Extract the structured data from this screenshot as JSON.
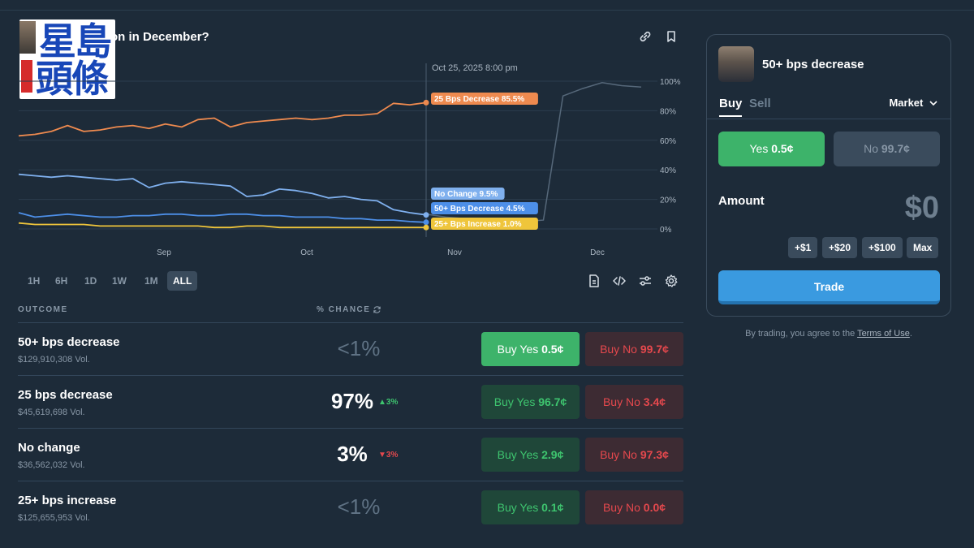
{
  "market": {
    "title": "on in December?"
  },
  "logo": {
    "line1": "星島",
    "line2": "頭條"
  },
  "chart_data": {
    "type": "line",
    "hover_label": "Oct 25, 2025 8:00 pm",
    "x_ticks": [
      "Sep",
      "Oct",
      "Nov",
      "Dec"
    ],
    "y_ticks": [
      "100%",
      "80%",
      "60%",
      "40%",
      "20%",
      "0%"
    ],
    "ylim": [
      0,
      100
    ],
    "grid": true,
    "series": [
      {
        "name": "25 Bps Decrease",
        "label": "25 Bps Decrease 85.5%",
        "color": "#ee8a4f",
        "values": [
          63,
          64,
          66,
          70,
          66,
          67,
          69,
          70,
          68,
          71,
          69,
          74,
          75,
          69,
          72,
          73,
          74,
          75,
          74,
          75,
          77,
          77,
          78,
          85,
          84,
          85.5
        ]
      },
      {
        "name": "No Change",
        "label": "No Change 9.5%",
        "color": "#7fb0ee",
        "values": [
          37,
          36,
          35,
          36,
          35,
          34,
          33,
          34,
          28,
          31,
          32,
          31,
          30,
          29,
          22,
          23,
          27,
          26,
          24,
          21,
          22,
          20,
          19,
          13,
          11,
          9.5
        ]
      },
      {
        "name": "50+ Bps Decrease",
        "label": "50+ Bps Decrease 4.5%",
        "color": "#4d8fe8",
        "values": [
          11,
          8,
          9,
          10,
          9,
          8,
          8,
          9,
          9,
          10,
          10,
          9,
          9,
          10,
          10,
          9,
          9,
          8,
          8,
          8,
          7,
          7,
          6,
          6,
          5,
          4.5
        ]
      },
      {
        "name": "25+ Bps Increase",
        "label": "25+ Bps Increase 1.0%",
        "color": "#efc53b",
        "values": [
          4,
          3,
          3,
          3,
          3,
          2,
          2,
          2,
          2,
          2,
          2,
          2,
          1,
          1,
          2,
          2,
          1,
          1,
          1,
          1,
          1,
          1,
          1,
          1,
          1,
          1.0
        ]
      }
    ],
    "future_series": {
      "values": [
        10,
        8,
        7,
        6,
        5,
        5,
        6,
        90,
        95,
        99,
        97,
        96
      ]
    }
  },
  "timeframes": [
    {
      "label": "1H",
      "active": false
    },
    {
      "label": "6H",
      "active": false
    },
    {
      "label": "1D",
      "active": false
    },
    {
      "label": "1W",
      "active": false
    },
    {
      "label": "1M",
      "active": false
    },
    {
      "label": "ALL",
      "active": true
    }
  ],
  "columns": {
    "outcome": "OUTCOME",
    "chance": "% CHANCE"
  },
  "outcomes": [
    {
      "name": "50+ bps decrease",
      "volume": "$129,910,308 Vol.",
      "chance": "<1%",
      "delta": "",
      "yes_label": "Buy Yes",
      "yes_price": "0.5¢",
      "no_label": "Buy No",
      "no_price": "99.7¢"
    },
    {
      "name": "25 bps decrease",
      "volume": "$45,619,698 Vol.",
      "chance": "97%",
      "delta": "▲3%",
      "yes_label": "Buy Yes",
      "yes_price": "96.7¢",
      "no_label": "Buy No",
      "no_price": "3.4¢"
    },
    {
      "name": "No change",
      "volume": "$36,562,032 Vol.",
      "chance": "3%",
      "delta": "▼3%",
      "yes_label": "Buy Yes",
      "yes_price": "2.9¢",
      "no_label": "Buy No",
      "no_price": "97.3¢"
    },
    {
      "name": "25+ bps increase",
      "volume": "$125,655,953 Vol.",
      "chance": "<1%",
      "delta": "",
      "yes_label": "Buy Yes",
      "yes_price": "0.1¢",
      "no_label": "Buy No",
      "no_price": "0.0¢"
    }
  ],
  "trade_panel": {
    "outcome_name": "50+ bps decrease",
    "tab_buy": "Buy",
    "tab_sell": "Sell",
    "order_type": "Market",
    "yes_label": "Yes",
    "yes_price": "0.5¢",
    "no_label": "No",
    "no_price": "99.7¢",
    "amount_label": "Amount",
    "amount_value": "$0",
    "quick_amounts": [
      "+$1",
      "+$20",
      "+$100",
      "Max"
    ],
    "trade_button": "Trade"
  },
  "terms": {
    "prefix": "By trading, you agree to the ",
    "link": "Terms of Use",
    "suffix": "."
  },
  "colors": {
    "background": "#1d2b39",
    "yes_green": "#3db36a",
    "no_red": "#e5484d",
    "trade_blue": "#3a9ae0"
  }
}
